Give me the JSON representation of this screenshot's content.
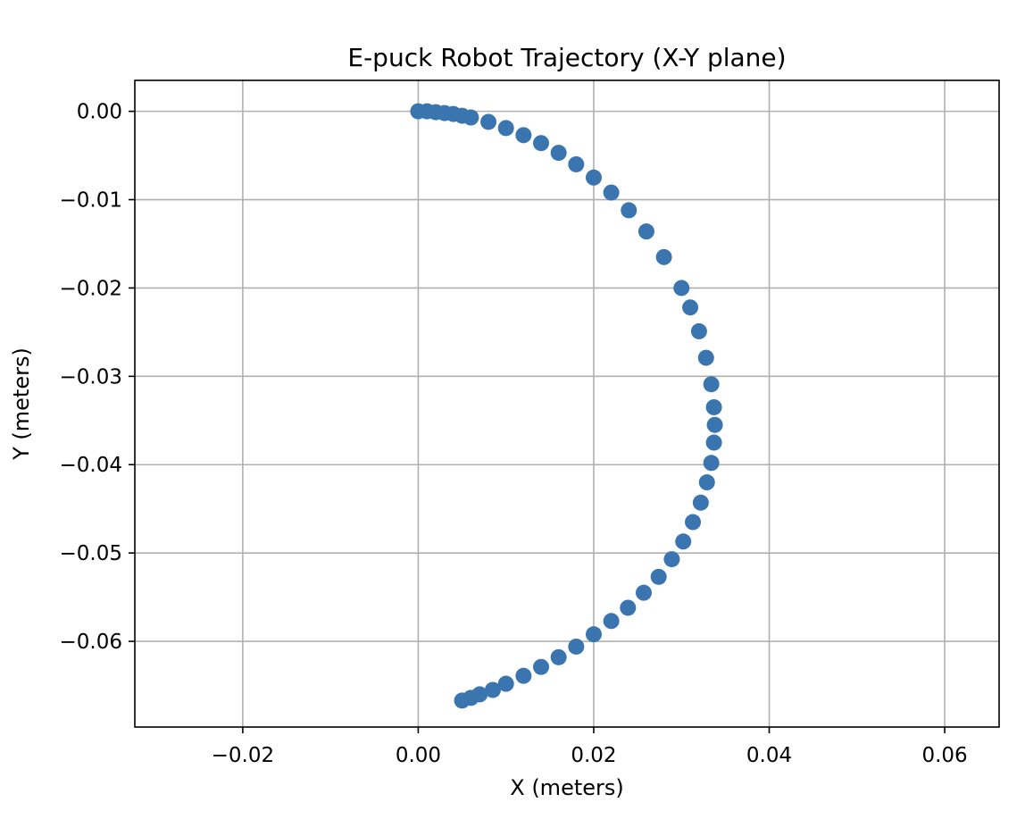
{
  "chart_data": {
    "type": "scatter",
    "title": "E-puck Robot Trajectory (X-Y plane)",
    "xlabel": "X (meters)",
    "ylabel": "Y (meters)",
    "xlim": [
      -0.0323,
      0.0662
    ],
    "ylim": [
      -0.0697,
      0.0035
    ],
    "xticks": [
      -0.02,
      0.0,
      0.02,
      0.04,
      0.06
    ],
    "xtick_labels": [
      "−0.02",
      "0.00",
      "0.02",
      "0.04",
      "0.06"
    ],
    "yticks": [
      0.0,
      -0.01,
      -0.02,
      -0.03,
      -0.04,
      -0.05,
      -0.06
    ],
    "ytick_labels": [
      "0.00",
      "−0.01",
      "−0.02",
      "−0.03",
      "−0.04",
      "−0.05",
      "−0.06"
    ],
    "grid": true,
    "marker_color": "#3a75b0",
    "series": [
      {
        "x": [
          0.0,
          0.001,
          0.002,
          0.003,
          0.004,
          0.005,
          0.006,
          0.008,
          0.01,
          0.012,
          0.014,
          0.016,
          0.018,
          0.02,
          0.022,
          0.024,
          0.026,
          0.028,
          0.03,
          0.031,
          0.032,
          0.0328,
          0.0334,
          0.0337,
          0.0338,
          0.0337,
          0.0334,
          0.0329,
          0.0322,
          0.0313,
          0.0302,
          0.0289,
          0.0274,
          0.0257,
          0.0239,
          0.022,
          0.02,
          0.018,
          0.016,
          0.014,
          0.012,
          0.01,
          0.0085,
          0.007,
          0.006,
          0.005
        ],
        "y": [
          0.0,
          0.0,
          -0.0001,
          -0.0002,
          -0.0003,
          -0.0005,
          -0.0007,
          -0.0012,
          -0.0019,
          -0.0027,
          -0.0036,
          -0.0047,
          -0.006,
          -0.0075,
          -0.0092,
          -0.0112,
          -0.0136,
          -0.0165,
          -0.02,
          -0.0222,
          -0.0249,
          -0.0279,
          -0.0309,
          -0.0335,
          -0.0355,
          -0.0375,
          -0.0398,
          -0.042,
          -0.0443,
          -0.0465,
          -0.0487,
          -0.0507,
          -0.0527,
          -0.0545,
          -0.0562,
          -0.0577,
          -0.0592,
          -0.0606,
          -0.0618,
          -0.0629,
          -0.0639,
          -0.0648,
          -0.0655,
          -0.066,
          -0.0664,
          -0.0667
        ]
      }
    ]
  }
}
